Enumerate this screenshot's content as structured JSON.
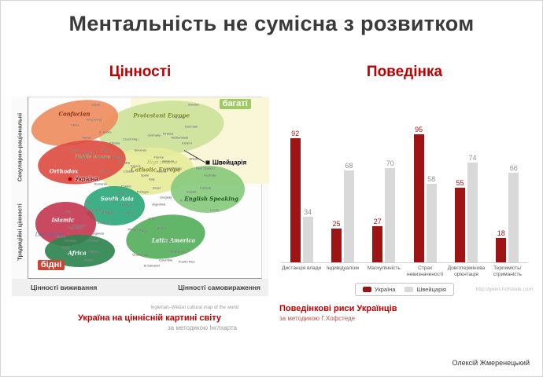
{
  "title": "Ментальність не сумісна з розвитком",
  "left": {
    "heading": "Цінності",
    "caption_title": "Україна на ціннісній картині світу",
    "caption_sub": "за методикою Інглхарта"
  },
  "right": {
    "heading": "Поведінка",
    "caption_title": "Поведінкові риси Українців",
    "caption_sub": "за методикою Г.Хофстеде",
    "source_url": "http://geert-hofstede.com"
  },
  "footer": {
    "author": "Олексій Жмеренецький"
  },
  "chart_data": [
    {
      "type": "bar",
      "title": "Поведінкові риси Українців",
      "categories": [
        "Дистанція влади",
        "Індивідуалізм",
        "Маскулінність",
        "Страх невизначеності",
        "Довготермінова орієнтація",
        "Терпимість/ стриманість"
      ],
      "series": [
        {
          "name": "Україна",
          "color": "#9e1313",
          "values": [
            92,
            25,
            27,
            95,
            55,
            18
          ]
        },
        {
          "name": "Швейцарія",
          "color": "#d9d9d9",
          "values": [
            34,
            68,
            70,
            58,
            74,
            66
          ]
        }
      ],
      "ylim": [
        0,
        100
      ],
      "grid": false,
      "legend_position": "bottom",
      "value_label_color_secondary": "#8f8f8f"
    },
    {
      "type": "scatter",
      "title": "Inglehart–Welzel cultural map of the world",
      "x_axis_left": "Цінності виживання",
      "x_axis_right": "Цінності самовираження",
      "y_axis_top": "Секулярно-раціональні",
      "y_axis_bottom": "Традиційні цінності",
      "rich_zone_color": "#faf6d8",
      "regions": [
        {
          "label": "Protestant  Europe",
          "color": "#cde29a",
          "label_color": "#7c8a28",
          "cx": 57,
          "cy": 17,
          "rx": 27,
          "ry": 15,
          "rot": -6,
          "lx": 45,
          "ly": 10
        },
        {
          "label": "Catholic Europe",
          "color": "#e6eb9b",
          "label_color": "#83842a",
          "cx": 51,
          "cy": 41,
          "rx": 20,
          "ry": 13,
          "rot": -4,
          "lx": 44,
          "ly": 40
        },
        {
          "label": "Confucian",
          "color": "#ef8d60",
          "label_color": "#8a2d12",
          "cx": 20,
          "cy": 14,
          "rx": 19,
          "ry": 12,
          "rot": -12,
          "lx": 13,
          "ly": 9
        },
        {
          "label": "English Speaking",
          "color": "#88ca7d",
          "label_color": "#1f5c22",
          "cx": 77,
          "cy": 51,
          "rx": 16,
          "ry": 13,
          "rot": 0,
          "lx": 67,
          "ly": 56
        },
        {
          "label": "Latin America",
          "color": "#56b05c",
          "label_color": "#ffffff",
          "cx": 59,
          "cy": 77,
          "rx": 17,
          "ry": 12,
          "rot": -8,
          "lx": 53,
          "ly": 79
        },
        {
          "label": "South Asia",
          "color": "#2fa87c",
          "label_color": "#ffffff",
          "cx": 37,
          "cy": 60,
          "rx": 13,
          "ry": 11,
          "rot": 0,
          "lx": 31,
          "ly": 56
        },
        {
          "label": "Islamic",
          "color": "#c43b52",
          "label_color": "#ffffff",
          "cx": 16,
          "cy": 70,
          "rx": 13,
          "ry": 12,
          "rot": 0,
          "lx": 10,
          "ly": 68
        },
        {
          "label": "Africa",
          "color": "#2e8450",
          "label_color": "#ffffff",
          "cx": 22,
          "cy": 85,
          "rx": 15,
          "ry": 9,
          "rot": 0,
          "lx": 17,
          "ly": 86
        },
        {
          "label": "Orthodox",
          "color": "#dd4e43",
          "label_color": "#ffffff",
          "cx": 23,
          "cy": 36,
          "rx": 19,
          "ry": 12,
          "rot": -6,
          "lx": 9,
          "ly": 41
        }
      ],
      "income_labels": [
        {
          "label": "Low Income",
          "color": "#4a6fae",
          "x": 3,
          "y": 76
        },
        {
          "label": "Middle income",
          "color": "#b8bf6a",
          "x": 20,
          "y": 33
        },
        {
          "label": "High income",
          "color": "#a9b253",
          "x": 51,
          "y": 36
        }
      ],
      "zone_labels": [
        {
          "key": "rich",
          "label": "багаті",
          "x": 82,
          "y": 1,
          "bg": "#9fcb63",
          "color": "#ffffff"
        },
        {
          "key": "poor",
          "label": "бідні",
          "x": 4,
          "y": 90,
          "bg": "#cc4433",
          "color": "#ffffff"
        }
      ],
      "highlights": [
        {
          "key": "ukraine",
          "label": "Україна",
          "x": 18,
          "y": 45,
          "dot_color": "#c00000",
          "text_color": "#7a0b0b",
          "square": false
        },
        {
          "key": "switzerland",
          "label": "Швейцарія",
          "x": 77,
          "y": 36,
          "dot_color": "#1a1a1a",
          "text_color": "#000000",
          "square": true
        }
      ],
      "countries": [
        {
          "name": "Japan",
          "x": 29,
          "y": 4
        },
        {
          "name": "Sweden",
          "x": 71,
          "y": 4
        },
        {
          "name": "Norway",
          "x": 65,
          "y": 11
        },
        {
          "name": "Hong Kong",
          "x": 28,
          "y": 12
        },
        {
          "name": "China",
          "x": 20,
          "y": 15
        },
        {
          "name": "Denmark",
          "x": 70,
          "y": 16
        },
        {
          "name": "S. Korea",
          "x": 33,
          "y": 19
        },
        {
          "name": "Finland",
          "x": 60,
          "y": 20
        },
        {
          "name": "Germany",
          "x": 54,
          "y": 21
        },
        {
          "name": "Taiwan",
          "x": 25,
          "y": 22
        },
        {
          "name": "Netherlands",
          "x": 65,
          "y": 22
        },
        {
          "name": "Czech Rep.",
          "x": 44,
          "y": 23
        },
        {
          "name": "Estonia",
          "x": 37,
          "y": 25
        },
        {
          "name": "Iceland",
          "x": 68,
          "y": 25
        },
        {
          "name": "Russia",
          "x": 20,
          "y": 29
        },
        {
          "name": "Slovenia",
          "x": 48,
          "y": 29
        },
        {
          "name": "Latvia",
          "x": 33,
          "y": 29
        },
        {
          "name": "Belarus",
          "x": 26,
          "y": 31
        },
        {
          "name": "Lithuania",
          "x": 31,
          "y": 33
        },
        {
          "name": "Bulgaria",
          "x": 23,
          "y": 33
        },
        {
          "name": "Hungary",
          "x": 38,
          "y": 33
        },
        {
          "name": "France",
          "x": 56,
          "y": 33
        },
        {
          "name": "Britain",
          "x": 71,
          "y": 34
        },
        {
          "name": "Belgium",
          "x": 60,
          "y": 35
        },
        {
          "name": "Slovakia",
          "x": 41,
          "y": 36
        },
        {
          "name": "Greece",
          "x": 46,
          "y": 38
        },
        {
          "name": "New Zealand",
          "x": 76,
          "y": 39
        },
        {
          "name": "Luxembourg",
          "x": 62,
          "y": 39
        },
        {
          "name": "Austria",
          "x": 57,
          "y": 41
        },
        {
          "name": "Croatia",
          "x": 43,
          "y": 41
        },
        {
          "name": "Serbia",
          "x": 33,
          "y": 41
        },
        {
          "name": "Australia",
          "x": 78,
          "y": 43
        },
        {
          "name": "Spain",
          "x": 50,
          "y": 43
        },
        {
          "name": "Italy",
          "x": 53,
          "y": 45
        },
        {
          "name": "Moldova",
          "x": 28,
          "y": 45
        },
        {
          "name": "Romania",
          "x": 31,
          "y": 48
        },
        {
          "name": "Poland",
          "x": 42,
          "y": 49
        },
        {
          "name": "Canada",
          "x": 76,
          "y": 50
        },
        {
          "name": "Israel",
          "x": 55,
          "y": 50
        },
        {
          "name": "Ireland",
          "x": 70,
          "y": 52
        },
        {
          "name": "Portugal",
          "x": 49,
          "y": 52
        },
        {
          "name": "Vietnam",
          "x": 40,
          "y": 53
        },
        {
          "name": "Uruguay",
          "x": 59,
          "y": 55
        },
        {
          "name": "N. Ireland",
          "x": 68,
          "y": 57
        },
        {
          "name": "India",
          "x": 36,
          "y": 57
        },
        {
          "name": "Iran",
          "x": 26,
          "y": 58
        },
        {
          "name": "Thailand",
          "x": 42,
          "y": 59
        },
        {
          "name": "Argentina",
          "x": 56,
          "y": 59
        },
        {
          "name": "U.S.A.",
          "x": 80,
          "y": 62
        },
        {
          "name": "Bangladesh",
          "x": 28,
          "y": 62
        },
        {
          "name": "Iraq",
          "x": 17,
          "y": 63
        },
        {
          "name": "Turkey",
          "x": 34,
          "y": 63
        },
        {
          "name": "S. Africa",
          "x": 43,
          "y": 64
        },
        {
          "name": "Indonesia",
          "x": 34,
          "y": 64
        },
        {
          "name": "Chile",
          "x": 53,
          "y": 67
        },
        {
          "name": "Zambia",
          "x": 32,
          "y": 69
        },
        {
          "name": "Pakistan",
          "x": 22,
          "y": 71
        },
        {
          "name": "Zimbabwe",
          "x": 20,
          "y": 72
        },
        {
          "name": "Brazil",
          "x": 57,
          "y": 72
        },
        {
          "name": "Philippines",
          "x": 46,
          "y": 73
        },
        {
          "name": "Peru",
          "x": 50,
          "y": 74
        },
        {
          "name": "Uganda",
          "x": 30,
          "y": 75
        },
        {
          "name": "Jordan",
          "x": 14,
          "y": 77
        },
        {
          "name": "Morocco",
          "x": 18,
          "y": 79
        },
        {
          "name": "Tanzania",
          "x": 28,
          "y": 79
        },
        {
          "name": "Mexico",
          "x": 60,
          "y": 79
        },
        {
          "name": "Egypt",
          "x": 16,
          "y": 83
        },
        {
          "name": "Nigeria",
          "x": 28,
          "y": 85
        },
        {
          "name": "Venezuela",
          "x": 64,
          "y": 85
        },
        {
          "name": "Guatemala",
          "x": 48,
          "y": 87
        },
        {
          "name": "Colombia",
          "x": 59,
          "y": 90
        },
        {
          "name": "Ghana",
          "x": 26,
          "y": 90
        },
        {
          "name": "Puerto Rico",
          "x": 68,
          "y": 91
        },
        {
          "name": "El Salvador",
          "x": 53,
          "y": 93
        }
      ]
    }
  ]
}
